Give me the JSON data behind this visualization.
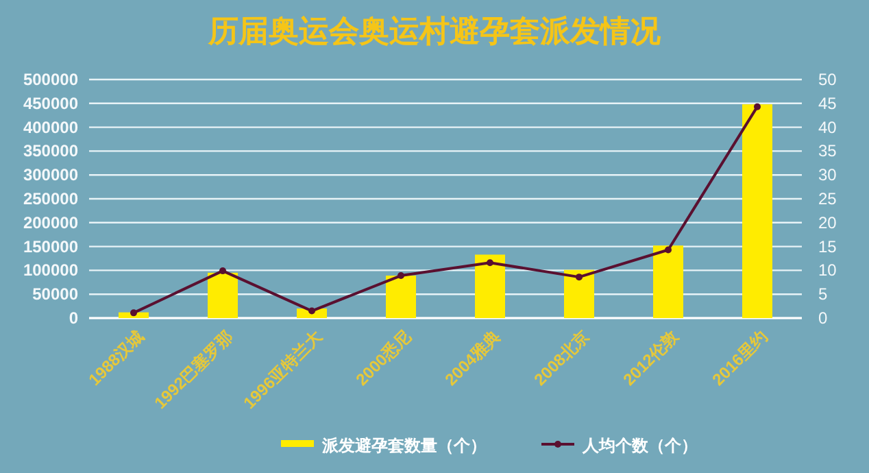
{
  "chart_data": {
    "type": "bar",
    "title": "历届奥运会奥运村避孕套派发情况",
    "categories": [
      "1988汉城",
      "1992巴塞罗那",
      "1996亚特兰大",
      "2000悉尼",
      "2004雅典",
      "2008北京",
      "2012伦敦",
      "2016里约"
    ],
    "series": [
      {
        "name": "派发避孕套数量（个）",
        "color": "#ffec00",
        "values": [
          12000,
          95000,
          20000,
          89000,
          133000,
          101000,
          152000,
          448000
        ]
      },
      {
        "name": "人均个数（个）",
        "type": "line",
        "axis": "y2",
        "color": "#5a1030",
        "marker": "circle",
        "values": [
          1.1,
          9.9,
          1.5,
          8.9,
          11.6,
          8.6,
          14.3,
          44.3
        ]
      }
    ],
    "ylim": [
      0,
      500000
    ],
    "yticks": [
      0,
      50000,
      100000,
      150000,
      200000,
      250000,
      300000,
      350000,
      400000,
      450000,
      500000
    ],
    "y2lim": [
      0,
      50
    ],
    "y2ticks": [
      0,
      5,
      10,
      15,
      20,
      25,
      30,
      35,
      40,
      45,
      50
    ],
    "grid": "y",
    "legend": "bottom"
  }
}
